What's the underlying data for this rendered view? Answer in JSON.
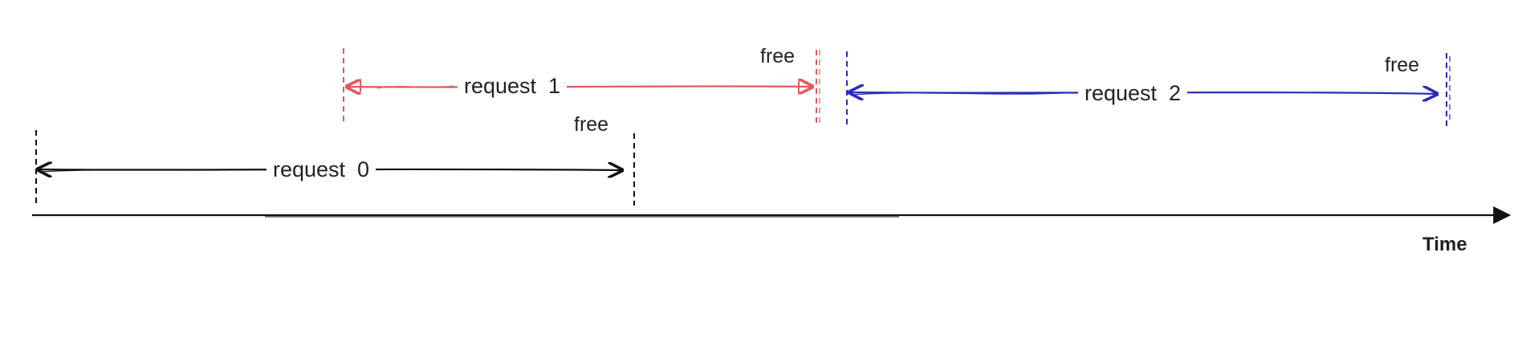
{
  "diagram": {
    "axis_label": "Time",
    "requests": [
      {
        "label": "request  0",
        "free_label": "free",
        "color": "#111111"
      },
      {
        "label": "request  1",
        "free_label": "free",
        "color": "#e05a5a"
      },
      {
        "label": "request  2",
        "free_label": "free",
        "color": "#2b2bb8"
      }
    ]
  }
}
